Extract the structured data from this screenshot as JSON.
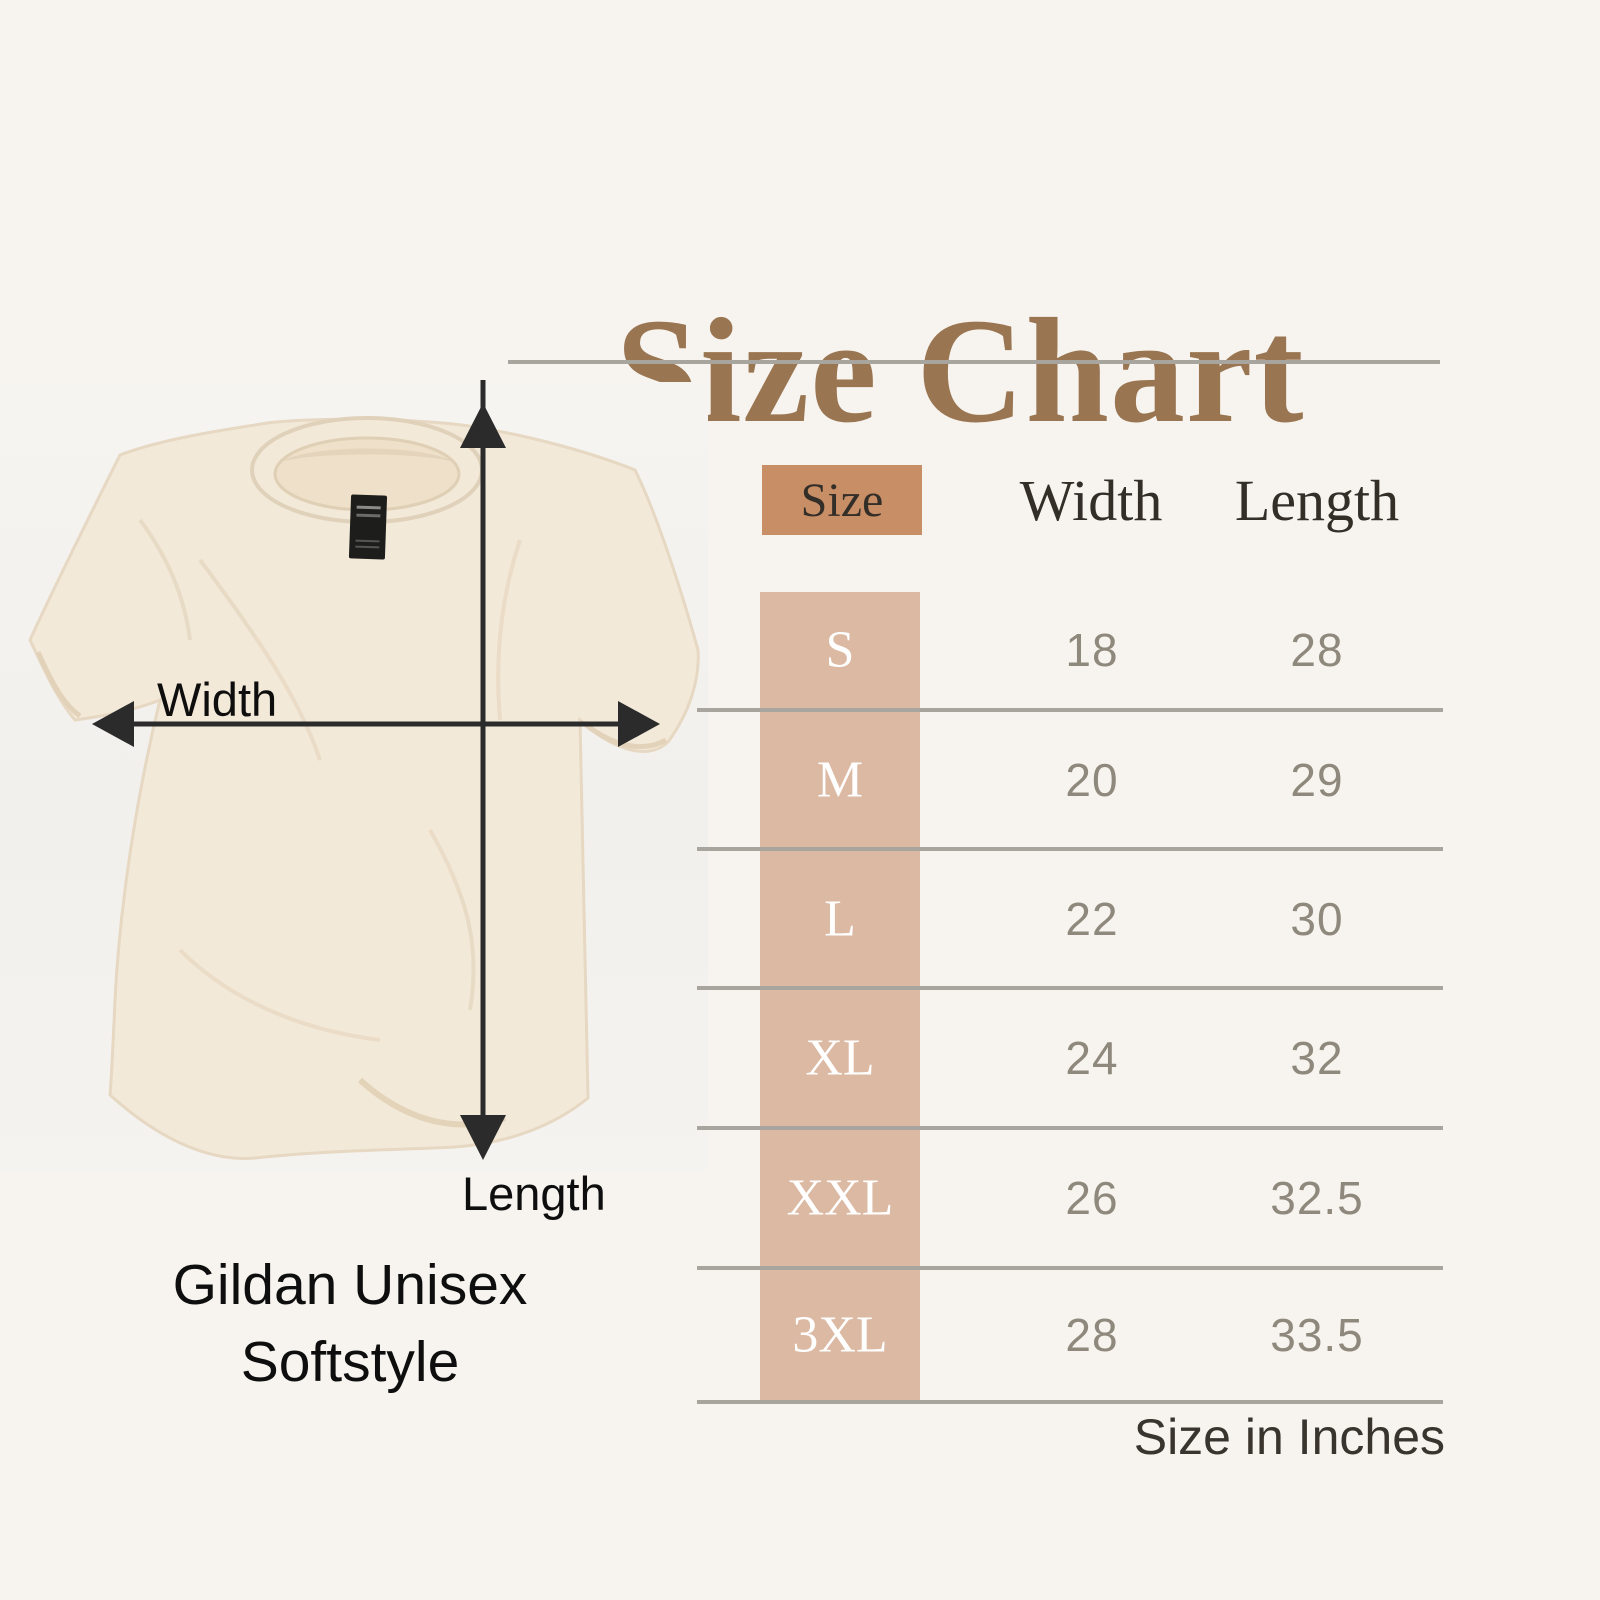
{
  "title": "Size Chart",
  "product": {
    "line1": "Gildan Unisex",
    "line2": "Softstyle"
  },
  "measurements": {
    "width_label": "Width",
    "length_label": "Length"
  },
  "table": {
    "headers": {
      "size": "Size",
      "width": "Width",
      "length": "Length"
    },
    "rows": [
      {
        "size": "S",
        "width": "18",
        "length": "28"
      },
      {
        "size": "M",
        "width": "20",
        "length": "29"
      },
      {
        "size": "L",
        "width": "22",
        "length": "30"
      },
      {
        "size": "XL",
        "width": "24",
        "length": "32"
      },
      {
        "size": "XXL",
        "width": "26",
        "length": "32.5"
      },
      {
        "size": "3XL",
        "width": "28",
        "length": "33.5"
      }
    ],
    "units_note": "Size in Inches"
  },
  "graphics": {
    "tshirt": "flat-lay-cream-tshirt-photo",
    "width_arrow": "double-headed-horizontal-arrow",
    "length_arrow": "double-headed-vertical-arrow"
  },
  "colors": {
    "background": "#f7f4ef",
    "title_brown": "#9a7552",
    "header_cell_bg": "#c88e66",
    "size_column_bg": "#dcb9a3",
    "divider_gray": "#a8a49e",
    "value_gray": "#8f897d",
    "header_text": "#332e28",
    "arrow_black": "#2b2b2b",
    "size_letter_white": "#ffffff"
  },
  "chart_data": {
    "type": "table",
    "title": "Size Chart",
    "columns": [
      "Size",
      "Width",
      "Length"
    ],
    "categories": [
      "S",
      "M",
      "L",
      "XL",
      "XXL",
      "3XL"
    ],
    "series": [
      {
        "name": "Width",
        "values": [
          18,
          20,
          22,
          24,
          26,
          28
        ]
      },
      {
        "name": "Length",
        "values": [
          28,
          29,
          30,
          32,
          32.5,
          33.5
        ]
      }
    ],
    "units": "inches",
    "note": "Size in Inches",
    "garment": "Gildan Unisex Softstyle"
  }
}
